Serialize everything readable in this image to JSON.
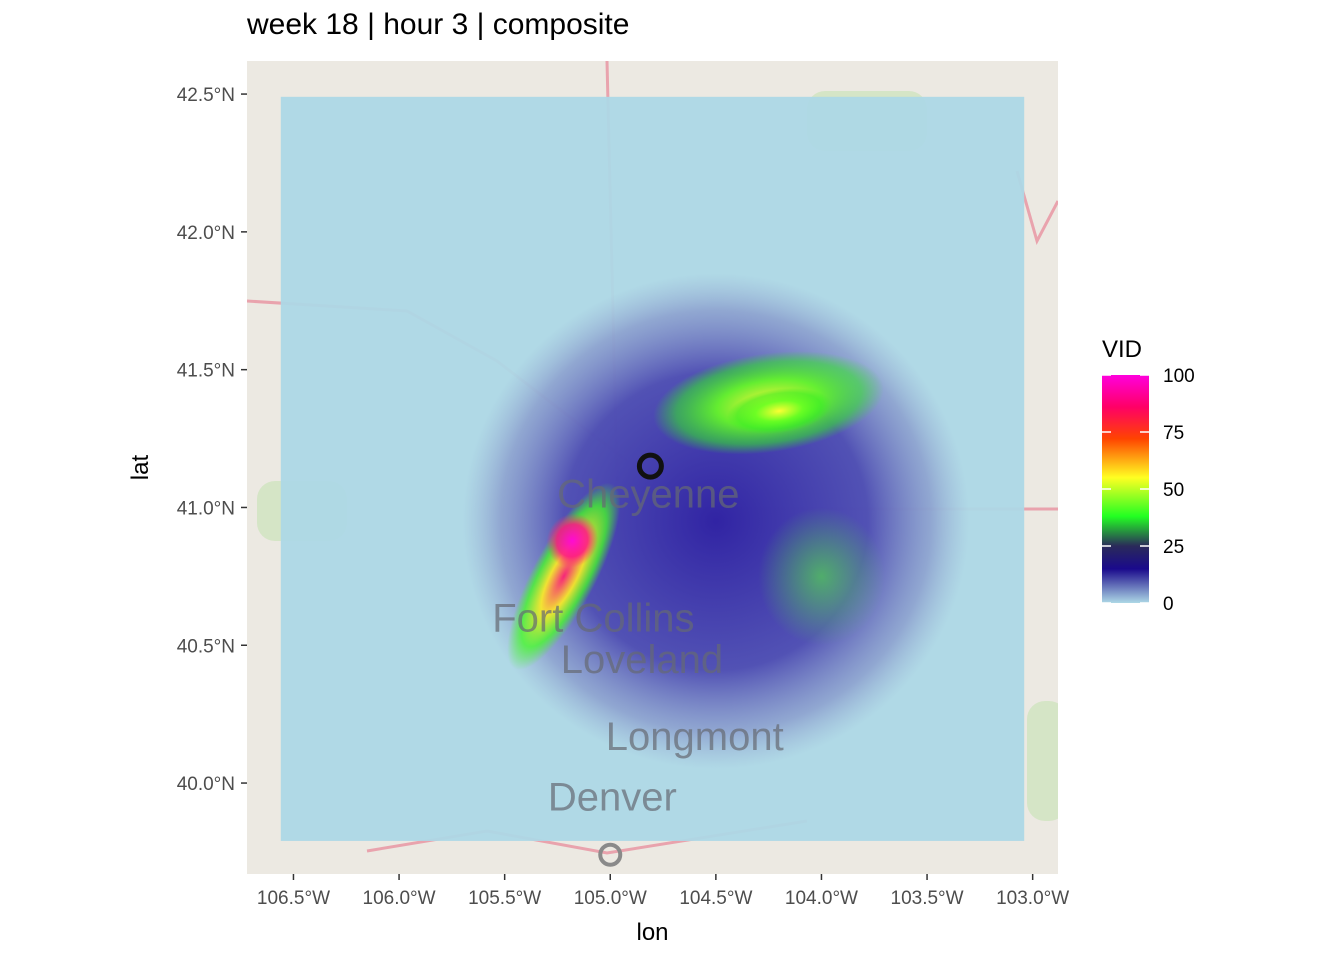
{
  "chart_data": {
    "type": "heatmap",
    "title": "week 18 | hour 3 | composite",
    "xlabel": "lon",
    "ylabel": "lat",
    "xlim": [
      -106.72,
      -102.88
    ],
    "ylim": [
      39.67,
      42.62
    ],
    "x_ticks": [
      {
        "value": -106.5,
        "label": "106.5°W"
      },
      {
        "value": -106.0,
        "label": "106.0°W"
      },
      {
        "value": -105.5,
        "label": "105.5°W"
      },
      {
        "value": -105.0,
        "label": "105.0°W"
      },
      {
        "value": -104.5,
        "label": "104.5°W"
      },
      {
        "value": -104.0,
        "label": "104.0°W"
      },
      {
        "value": -103.5,
        "label": "103.5°W"
      },
      {
        "value": -103.0,
        "label": "103.0°W"
      }
    ],
    "y_ticks": [
      {
        "value": 40.0,
        "label": "40.0°N"
      },
      {
        "value": 40.5,
        "label": "40.5°N"
      },
      {
        "value": 41.0,
        "label": "41.0°N"
      },
      {
        "value": 41.5,
        "label": "41.5°N"
      },
      {
        "value": 42.0,
        "label": "42.0°N"
      },
      {
        "value": 42.5,
        "label": "42.5°N"
      }
    ],
    "grid": false,
    "legend": {
      "title": "VID",
      "position": "right",
      "min": 0,
      "max": 100,
      "breaks": [
        {
          "value": 0,
          "label": "0"
        },
        {
          "value": 25,
          "label": "25"
        },
        {
          "value": 50,
          "label": "50"
        },
        {
          "value": 75,
          "label": "75"
        },
        {
          "value": 100,
          "label": "100"
        }
      ],
      "colors": [
        {
          "stop": 0.0,
          "color": "#add8e6"
        },
        {
          "stop": 0.15,
          "color": "#1a0a8c"
        },
        {
          "stop": 0.25,
          "color": "#2a2a5a"
        },
        {
          "stop": 0.38,
          "color": "#22ff22"
        },
        {
          "stop": 0.55,
          "color": "#ffff22"
        },
        {
          "stop": 0.72,
          "color": "#ff4400"
        },
        {
          "stop": 0.86,
          "color": "#ff0066"
        },
        {
          "stop": 1.0,
          "color": "#ff00dd"
        }
      ]
    },
    "grid_extent": {
      "lon": [
        -106.56,
        -103.04
      ],
      "lat": [
        39.79,
        42.49
      ]
    },
    "radar_sites": [
      {
        "lon": -104.81,
        "lat": 41.15,
        "style": "black"
      },
      {
        "lon": -105.0,
        "lat": 39.74,
        "style": "gray"
      }
    ],
    "basemap_labels": [
      {
        "text": "Cheyenne",
        "lon": -104.82,
        "lat": 41.0
      },
      {
        "text": "Fort Collins",
        "lon": -105.08,
        "lat": 40.55
      },
      {
        "text": "Loveland",
        "lon": -104.85,
        "lat": 40.4
      },
      {
        "text": "Longmont",
        "lon": -104.6,
        "lat": 40.12
      },
      {
        "text": "Denver",
        "lon": -104.99,
        "lat": 39.9
      }
    ],
    "vid_regions": [
      {
        "name": "east-plume",
        "lon": -104.25,
        "lat": 41.38,
        "r_lon": 0.55,
        "r_lat": 0.18,
        "value": 52
      },
      {
        "name": "east-plume-core",
        "lon": -104.2,
        "lat": 41.35,
        "r_lon": 0.25,
        "r_lat": 0.08,
        "value": 62
      },
      {
        "name": "front-range-band",
        "lon": -105.22,
        "lat": 40.75,
        "r_lon": 0.15,
        "r_lat": 0.38,
        "value": 60
      },
      {
        "name": "front-range-core",
        "lon": -105.18,
        "lat": 40.88,
        "r_lon": 0.12,
        "r_lat": 0.1,
        "value": 92
      },
      {
        "name": "south-east-plains",
        "lon": -104.0,
        "lat": 40.75,
        "r_lon": 0.3,
        "r_lat": 0.25,
        "value": 38
      },
      {
        "name": "radar-coverage-ring",
        "lon": -104.5,
        "lat": 40.95,
        "r_lon": 1.2,
        "r_lat": 0.9,
        "value": 14
      }
    ]
  }
}
